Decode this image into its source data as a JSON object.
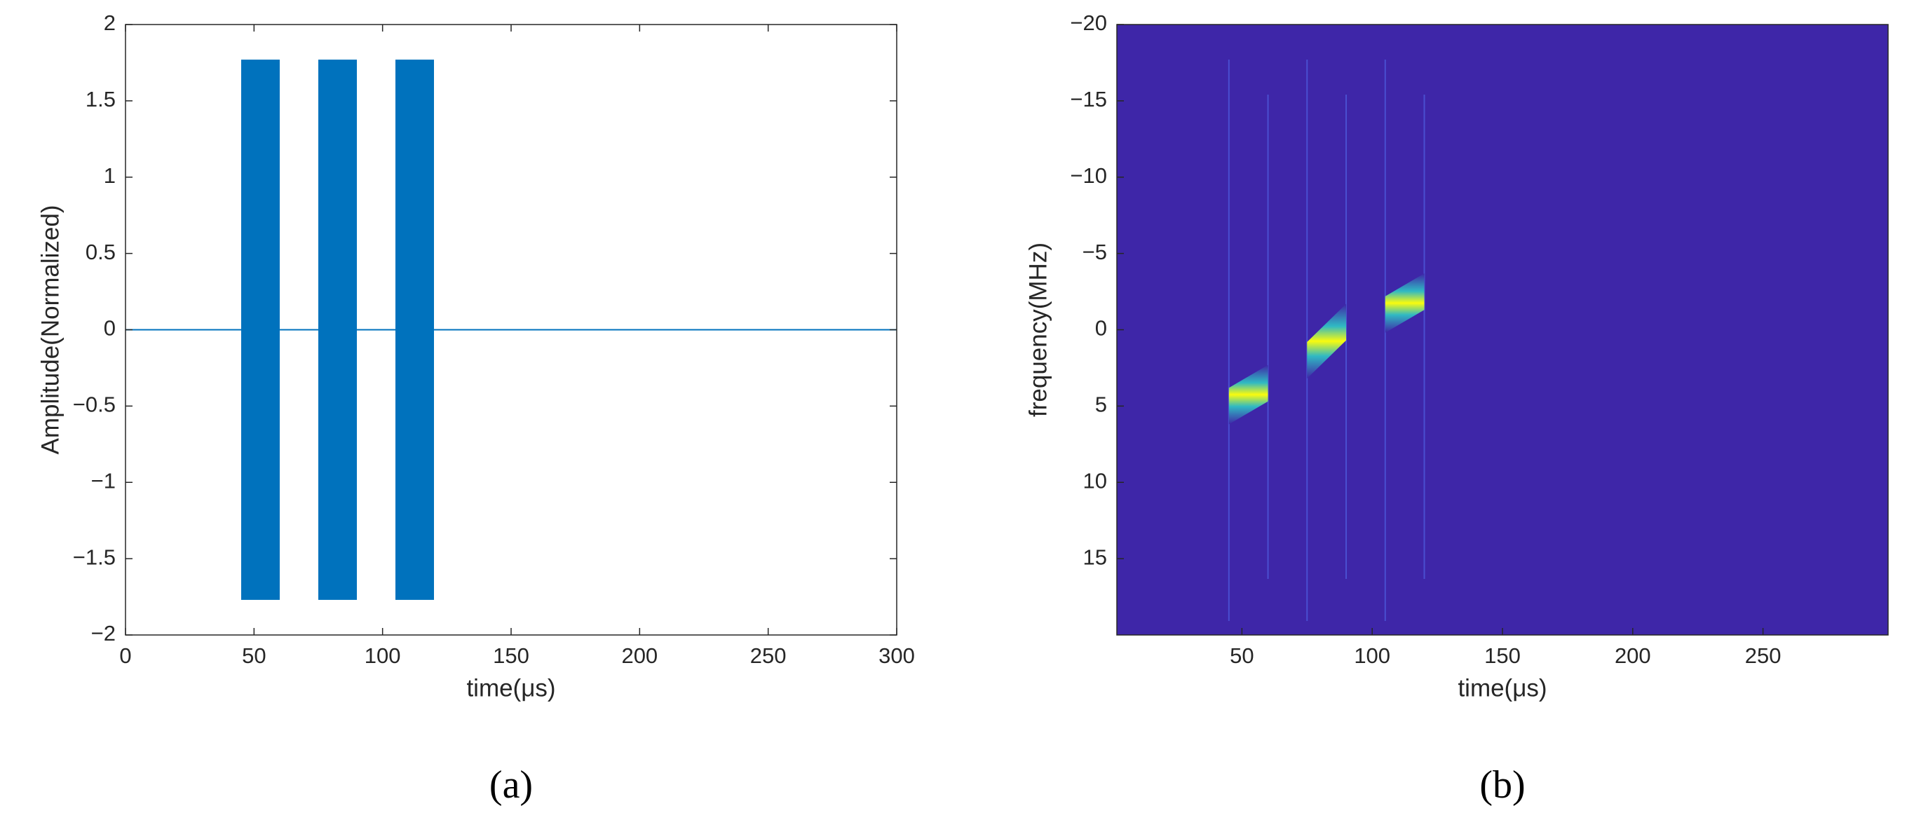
{
  "chart_data": [
    {
      "type": "waveform",
      "xlabel": "time(μs)",
      "ylabel": "Amplitude(Normalized)",
      "panel_label": "(a)",
      "color": "#0072bd",
      "baseline": 0,
      "pulses": [
        {
          "start": 45,
          "end": 60,
          "amplitude": 1.77
        },
        {
          "start": 75,
          "end": 90,
          "amplitude": 1.77
        },
        {
          "start": 105,
          "end": 120,
          "amplitude": 1.77
        }
      ],
      "xlim": [
        0,
        300
      ],
      "xticks": [
        0,
        50,
        100,
        150,
        200,
        250,
        300
      ],
      "ylim": [
        -2,
        2
      ],
      "yticks": [
        {
          "value": -2,
          "label": "−2"
        },
        {
          "value": -1.5,
          "label": "−1.5"
        },
        {
          "value": -1,
          "label": "−1"
        },
        {
          "value": -0.5,
          "label": "−0.5"
        },
        0,
        0.5,
        1,
        1.5,
        2
      ]
    },
    {
      "type": "spectrogram",
      "xlabel": "time(μs)",
      "ylabel": "frequency(MHz)",
      "panel_label": "(b)",
      "background": "#3e26a8",
      "colors": [
        "#30b9c3",
        "#f9fb0e"
      ],
      "y_reversed": true,
      "chirps": [
        {
          "start": 45,
          "end": 60,
          "freq_start": 5,
          "freq_end": 3.5
        },
        {
          "start": 75,
          "end": 90,
          "freq_start": 2,
          "freq_end": -0.5
        },
        {
          "start": 105,
          "end": 120,
          "freq_start": -1,
          "freq_end": -2.5
        }
      ],
      "xlim": [
        2,
        298
      ],
      "xticks": [
        50,
        100,
        150,
        200,
        250
      ],
      "ylim": [
        -20,
        20
      ],
      "yticks": [
        {
          "value": -20,
          "label": "−20"
        },
        {
          "value": -15,
          "label": "−15"
        },
        {
          "value": -10,
          "label": "−10"
        },
        {
          "value": -5,
          "label": "−5"
        },
        0,
        5,
        10,
        15
      ]
    }
  ]
}
